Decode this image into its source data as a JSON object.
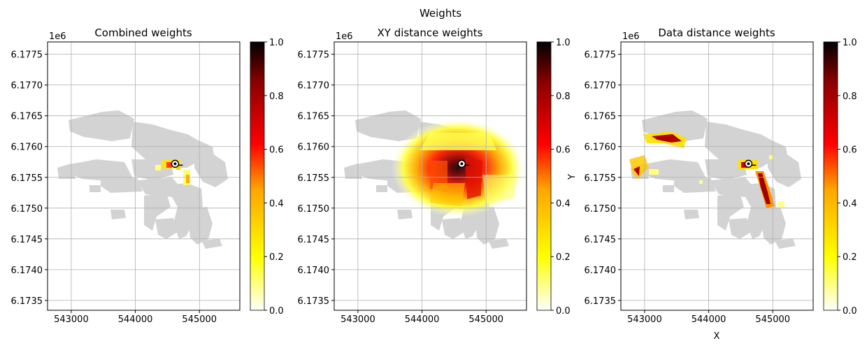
{
  "figure": {
    "suptitle": "Weights"
  },
  "colorbar": {
    "ticks": [
      "0.0",
      "0.2",
      "0.4",
      "0.6",
      "0.8",
      "1.0"
    ],
    "stops": [
      "#ffffff",
      "#ffff00",
      "#ff8000",
      "#ff0000",
      "#800000",
      "#000000"
    ]
  },
  "colors": {
    "data_gray": "#d3d3d3",
    "grid": "#b0b0b0",
    "marker_ring": "#ffffff",
    "marker_center": "#000000"
  },
  "chart_data": [
    {
      "type": "scatter",
      "title": "Combined weights",
      "xlabel": "",
      "ylabel": "",
      "xlim": [
        542630,
        545630
      ],
      "ylim": [
        6173340,
        6177700
      ],
      "x_offset_label": "1e6",
      "xticks": [
        "543000",
        "544000",
        "545000"
      ],
      "yticks": [
        "6.1735",
        "6.1740",
        "6.1745",
        "6.1750",
        "6.1755",
        "6.1760",
        "6.1765",
        "6.1770",
        "6.1775"
      ],
      "grid": true,
      "colormap": "hot_r",
      "clim": [
        0.0,
        1.0
      ],
      "query_point": [
        544620,
        6175720
      ]
    },
    {
      "type": "scatter",
      "title": "XY distance weights",
      "xlabel": "",
      "ylabel": "Y",
      "xlim": [
        542630,
        545630
      ],
      "ylim": [
        6173340,
        6177700
      ],
      "x_offset_label": "1e6",
      "xticks": [
        "543000",
        "544000",
        "545000"
      ],
      "yticks": [
        "6.1735",
        "6.1740",
        "6.1745",
        "6.1750",
        "6.1755",
        "6.1760",
        "6.1765",
        "6.1770",
        "6.1775"
      ],
      "grid": true,
      "colormap": "hot_r",
      "clim": [
        0.0,
        1.0
      ],
      "query_point": [
        544620,
        6175720
      ]
    },
    {
      "type": "scatter",
      "title": "Data distance weights",
      "xlabel": "X",
      "ylabel": "",
      "xlim": [
        542630,
        545630
      ],
      "ylim": [
        6173340,
        6177700
      ],
      "x_offset_label": "1e6",
      "xticks": [
        "543000",
        "544000",
        "545000"
      ],
      "yticks": [
        "6.1735",
        "6.1740",
        "6.1745",
        "6.1750",
        "6.1755",
        "6.1760",
        "6.1765",
        "6.1770",
        "6.1775"
      ],
      "grid": true,
      "colormap": "hot_r",
      "clim": [
        0.0,
        1.0
      ],
      "query_point": [
        544620,
        6175720
      ]
    }
  ]
}
